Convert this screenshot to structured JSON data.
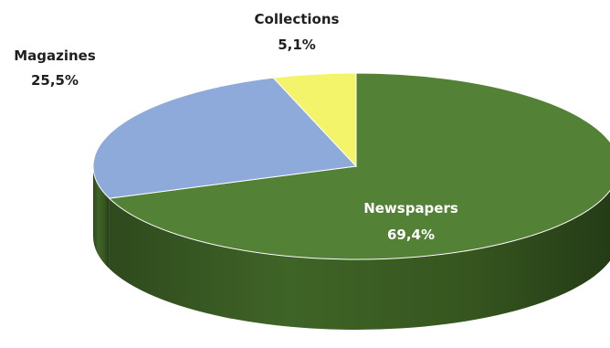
{
  "chart_data": {
    "type": "pie",
    "style": "3d",
    "categories": [
      "Newspapers",
      "Magazines",
      "Collections"
    ],
    "values": [
      69.4,
      25.5,
      5.1
    ],
    "value_labels": [
      "69,4%",
      "25,5%",
      "5,1%"
    ],
    "unit": "%",
    "colors": [
      "#538135",
      "#8eaadb",
      "#f4f46a"
    ],
    "side_color": "#385723",
    "legend": "none"
  }
}
